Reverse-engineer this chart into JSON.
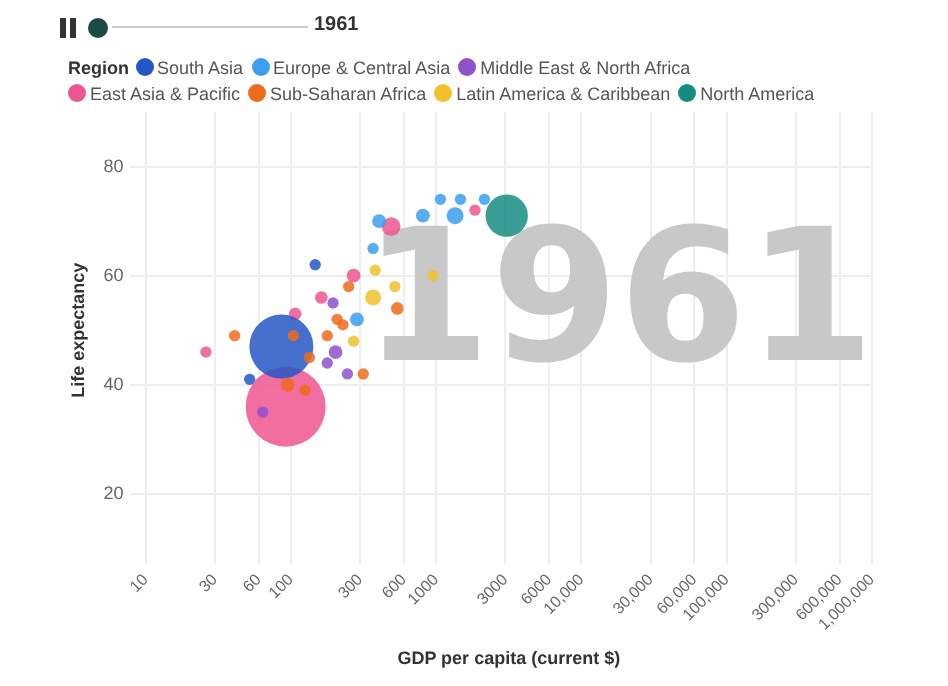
{
  "chart_data": {
    "type": "bubble",
    "xlabel": "GDP per capita (current $)",
    "ylabel": "Life expectancy",
    "legend_title": "Region",
    "legend": "top",
    "grid": true,
    "log": "x",
    "annotations": [
      "1961",
      "1961"
    ],
    "xlim": [
      10,
      1000000
    ],
    "xticks": [
      10,
      30,
      60,
      100,
      300,
      600,
      {
        "value": 1000,
        "label": "1000"
      },
      {
        "value": 3000,
        "label": "3000"
      },
      {
        "value": 6000,
        "label": "6000"
      },
      {
        "value": 10000,
        "label": "10,000"
      },
      {
        "value": 30000,
        "label": "30,000"
      },
      {
        "value": 60000,
        "label": "60,000"
      },
      {
        "value": 100000,
        "label": "100,000"
      },
      {
        "value": 300000,
        "label": "300,000"
      },
      {
        "value": 600000,
        "label": "600,000"
      },
      {
        "value": 1000000,
        "label": "1,000,000"
      }
    ],
    "ylim": [
      10,
      90
    ],
    "yticks": [
      20,
      40,
      60,
      80
    ],
    "series": [
      {
        "name": "South Asia",
        "color": "#2457c5",
        "x": [
          86,
          147,
          52
        ],
        "values": [
          47,
          62,
          41
        ],
        "sizes": [
          0.64,
          0.02,
          0.02
        ]
      },
      {
        "name": "Europe & Central Asia",
        "color": "#3b9ef0",
        "x": [
          405,
          810,
          1350,
          1070,
          1470,
          2150,
          368,
          285
        ],
        "values": [
          70,
          71,
          71,
          74,
          74,
          74,
          65,
          52
        ],
        "sizes": [
          0.03,
          0.03,
          0.045,
          0.02,
          0.02,
          0.02,
          0.02,
          0.03
        ]
      },
      {
        "name": "Middle East & North Africa",
        "color": "#8f52cc",
        "x": [
          195,
          203,
          178,
          245,
          64
        ],
        "values": [
          55,
          46,
          44,
          42,
          35
        ],
        "sizes": [
          0.02,
          0.03,
          0.02,
          0.02,
          0.02
        ]
      },
      {
        "name": "East Asia & Pacific",
        "color": "#ee5590",
        "x": [
          92,
          490,
          270,
          162,
          107,
          26,
          1850
        ],
        "values": [
          36,
          69,
          60,
          56,
          53,
          46,
          72
        ],
        "sizes": [
          1,
          0.055,
          0.03,
          0.025,
          0.025,
          0.02,
          0.02
        ]
      },
      {
        "name": "Sub-Saharan Africa",
        "color": "#ef6b1c",
        "x": [
          250,
          540,
          208,
          178,
          315,
          41,
          95,
          104,
          134,
          125,
          228
        ],
        "values": [
          58,
          54,
          52,
          49,
          42,
          49,
          40,
          49,
          45,
          39,
          51
        ],
        "sizes": [
          0.02,
          0.025,
          0.02,
          0.02,
          0.02,
          0.02,
          0.03,
          0.02,
          0.02,
          0.02,
          0.02
        ]
      },
      {
        "name": "Latin America & Caribbean",
        "color": "#f2c12a",
        "x": [
          368,
          520,
          950,
          270,
          380
        ],
        "values": [
          56,
          58,
          60,
          48,
          61
        ],
        "sizes": [
          0.04,
          0.02,
          0.02,
          0.02,
          0.02
        ]
      },
      {
        "name": "North America",
        "color": "#168b82",
        "x": [
          3060
        ],
        "values": [
          71
        ],
        "sizes": [
          0.28
        ]
      }
    ]
  }
}
